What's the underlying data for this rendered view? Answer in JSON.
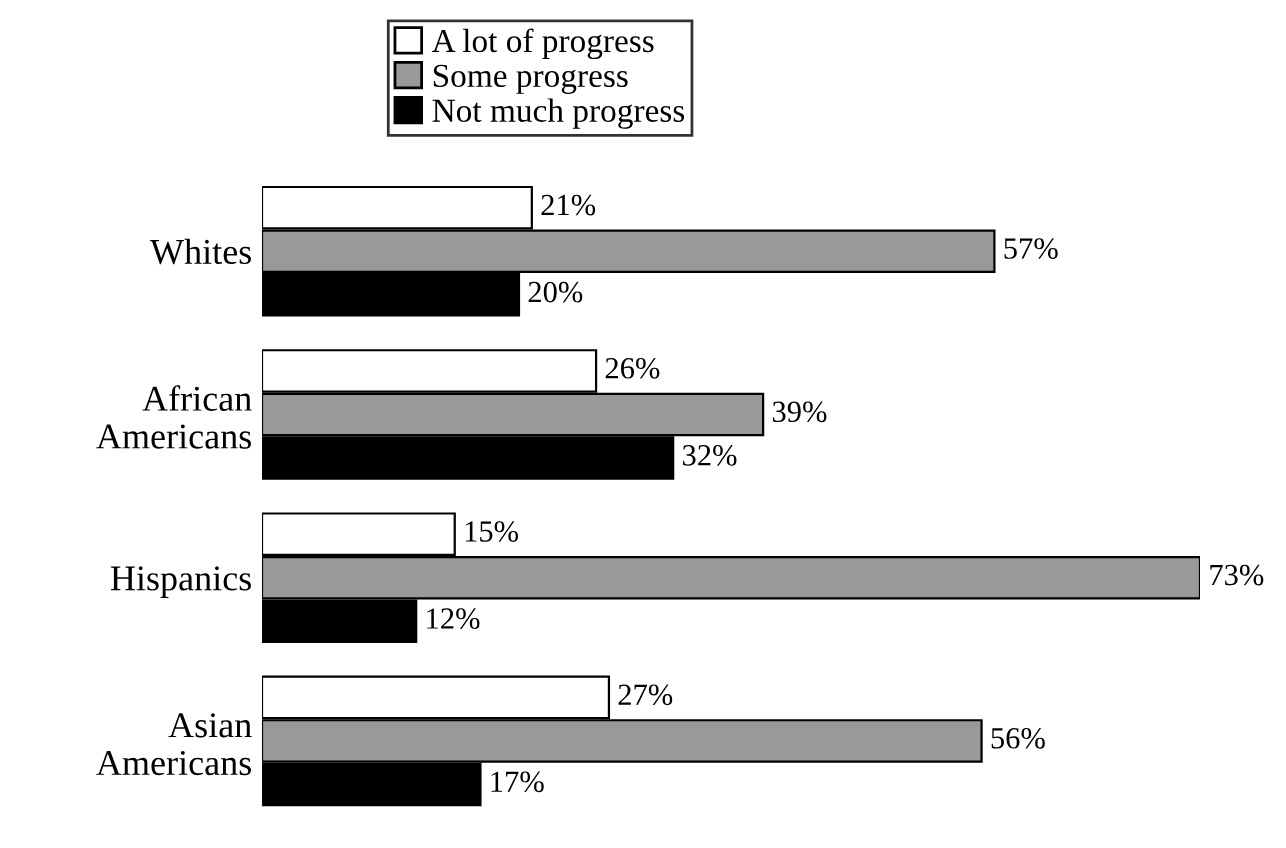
{
  "chart_data": {
    "type": "bar",
    "orientation": "horizontal",
    "categories": [
      "Whites",
      "African\nAmericans",
      "Hispanics",
      "Asian\nAmericans"
    ],
    "series": [
      {
        "name": "A lot of progress",
        "color": "#ffffff",
        "values": [
          21,
          26,
          15,
          27
        ],
        "value_labels": [
          "21%",
          "26%",
          "15%",
          "27%"
        ]
      },
      {
        "name": "Some progress",
        "color": "#999999",
        "values": [
          57,
          39,
          73,
          56
        ],
        "value_labels": [
          "57%",
          "39%",
          "73%",
          "56%"
        ]
      },
      {
        "name": "Not much progress",
        "color": "#000000",
        "values": [
          20,
          32,
          12,
          17
        ],
        "value_labels": [
          "20%",
          "32%",
          "12%",
          "17%"
        ]
      }
    ],
    "legend": "top",
    "grid": false
  }
}
